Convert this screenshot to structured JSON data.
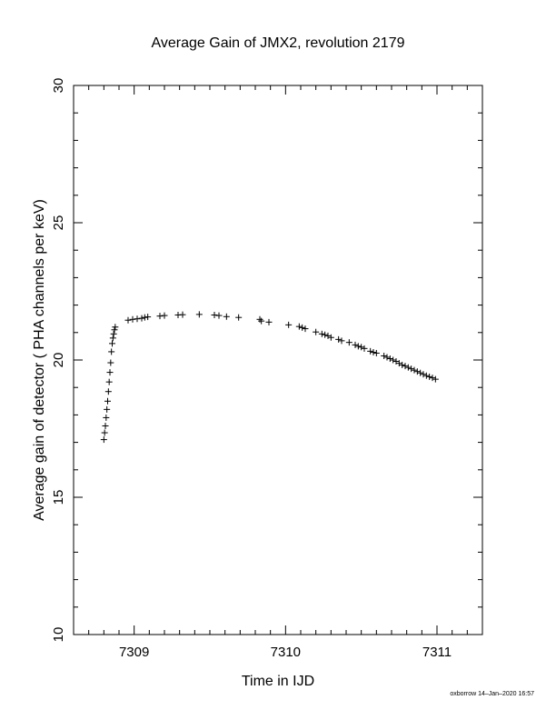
{
  "chart_data": {
    "type": "scatter",
    "title": "Average Gain of JMX2, revolution 2179",
    "xlabel": "Time in IJD",
    "ylabel": "Average gain of detector ( PHA channels per keV)",
    "xlim": [
      7308.6,
      7311.3
    ],
    "ylim": [
      10,
      30
    ],
    "xticks": [
      7309,
      7310,
      7311
    ],
    "yticks": [
      10,
      15,
      20,
      25,
      30
    ],
    "x_minor_step": 0.1,
    "y_minor_step": 1,
    "marker": "plus",
    "grid": false,
    "series": [
      {
        "x": [
          7308.8,
          7308.805,
          7308.81,
          7308.815,
          7308.82,
          7308.825,
          7308.83,
          7308.835,
          7308.84,
          7308.845,
          7308.85,
          7308.855,
          7308.86,
          7308.865,
          7308.87,
          7308.875,
          7308.96,
          7308.99,
          7309.02,
          7309.05,
          7309.07,
          7309.09,
          7309.17,
          7309.2,
          7309.29,
          7309.32,
          7309.43,
          7309.53,
          7309.56,
          7309.61,
          7309.69,
          7309.83,
          7309.84,
          7309.89,
          7310.02,
          7310.09,
          7310.11,
          7310.13,
          7310.2,
          7310.24,
          7310.26,
          7310.28,
          7310.3,
          7310.35,
          7310.37,
          7310.42,
          7310.46,
          7310.48,
          7310.5,
          7310.52,
          7310.56,
          7310.58,
          7310.6,
          7310.65,
          7310.67,
          7310.69,
          7310.71,
          7310.73,
          7310.75,
          7310.77,
          7310.79,
          7310.81,
          7310.83,
          7310.85,
          7310.87,
          7310.89,
          7310.91,
          7310.93,
          7310.95,
          7310.97,
          7310.99
        ],
        "y": [
          17.1,
          17.35,
          17.6,
          17.9,
          18.2,
          18.5,
          18.85,
          19.2,
          19.55,
          19.9,
          20.3,
          20.6,
          20.8,
          20.95,
          21.1,
          21.2,
          21.45,
          21.48,
          21.5,
          21.52,
          21.55,
          21.57,
          21.6,
          21.62,
          21.64,
          21.65,
          21.66,
          21.64,
          21.62,
          21.58,
          21.55,
          21.48,
          21.42,
          21.38,
          21.28,
          21.22,
          21.18,
          21.14,
          21.02,
          20.95,
          20.92,
          20.88,
          20.82,
          20.75,
          20.7,
          20.64,
          20.55,
          20.5,
          20.47,
          20.42,
          20.32,
          20.28,
          20.25,
          20.15,
          20.1,
          20.05,
          20.0,
          19.95,
          19.88,
          19.82,
          19.78,
          19.73,
          19.68,
          19.63,
          19.58,
          19.53,
          19.48,
          19.43,
          19.39,
          19.35,
          19.3
        ]
      }
    ]
  },
  "footer": {
    "stamp": "oxborrow 14–Jan–2020 16:57"
  }
}
